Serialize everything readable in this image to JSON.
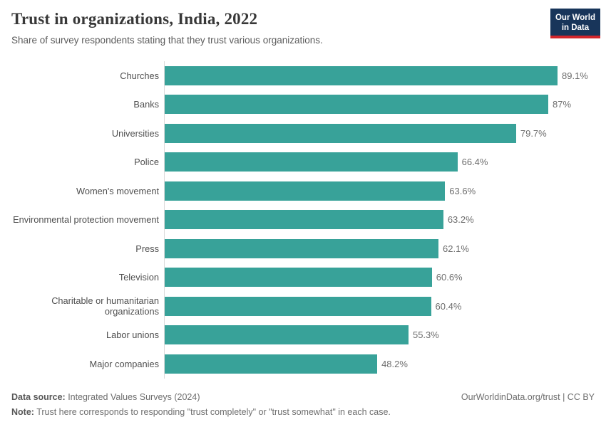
{
  "header": {
    "title": "Trust in organizations, India, 2022",
    "subtitle": "Share of survey respondents stating that they trust various organizations."
  },
  "logo": {
    "line1": "Our World",
    "line2": "in Data",
    "bg_color": "#18355a",
    "accent_color": "#d2262c"
  },
  "chart_data": {
    "type": "bar",
    "orientation": "horizontal",
    "title": "Trust in organizations, India, 2022",
    "categories": [
      "Churches",
      "Banks",
      "Universities",
      "Police",
      "Women's movement",
      "Environmental protection movement",
      "Press",
      "Television",
      "Charitable or humanitarian organizations",
      "Labor unions",
      "Major companies"
    ],
    "values": [
      89.1,
      87,
      79.7,
      66.4,
      63.6,
      63.2,
      62.1,
      60.6,
      60.4,
      55.3,
      48.2
    ],
    "value_labels": [
      "89.1%",
      "87%",
      "79.7%",
      "66.4%",
      "63.6%",
      "63.2%",
      "62.1%",
      "60.6%",
      "60.4%",
      "55.3%",
      "48.2%"
    ],
    "bar_color": "#38a299",
    "axis_line_color": "#dbdbdb",
    "xlabel": "",
    "ylabel": "",
    "xlim": [
      0,
      89.1
    ],
    "grid": false,
    "legend": false
  },
  "footer": {
    "source_label": "Data source:",
    "source_text": " Integrated Values Surveys (2024)",
    "note_label": "Note:",
    "note_text": " Trust here corresponds to responding \"trust completely\" or \"trust somewhat\" in each case.",
    "right_text": "OurWorldinData.org/trust | CC BY"
  }
}
